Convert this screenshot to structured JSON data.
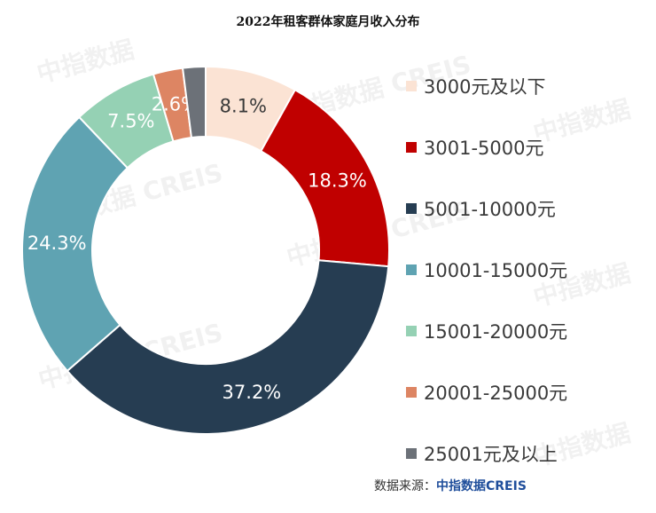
{
  "chart_data": {
    "type": "pie",
    "title": "2022年租客群体家庭月收入分布",
    "donut": true,
    "legend_position": "right",
    "categories": [
      "3000元及以下",
      "3001-5000元",
      "5001-10000元",
      "10001-15000元",
      "15001-20000元",
      "20001-25000元",
      "25001元及以上"
    ],
    "values": [
      8.1,
      18.3,
      37.2,
      24.3,
      7.5,
      2.6,
      2.0
    ],
    "value_labels": [
      "8.1%",
      "18.3%",
      "37.2%",
      "24.3%",
      "7.5%",
      "2.6%",
      ""
    ],
    "colors": [
      "#fbe3d4",
      "#c00000",
      "#263d52",
      "#5fa3b2",
      "#95d1b4",
      "#dd8563",
      "#6c7178"
    ]
  },
  "source": {
    "label": "数据来源：",
    "value": "中指数据CREIS"
  },
  "watermark": {
    "text_cn": "中指数据",
    "text_en": "CREIS"
  }
}
